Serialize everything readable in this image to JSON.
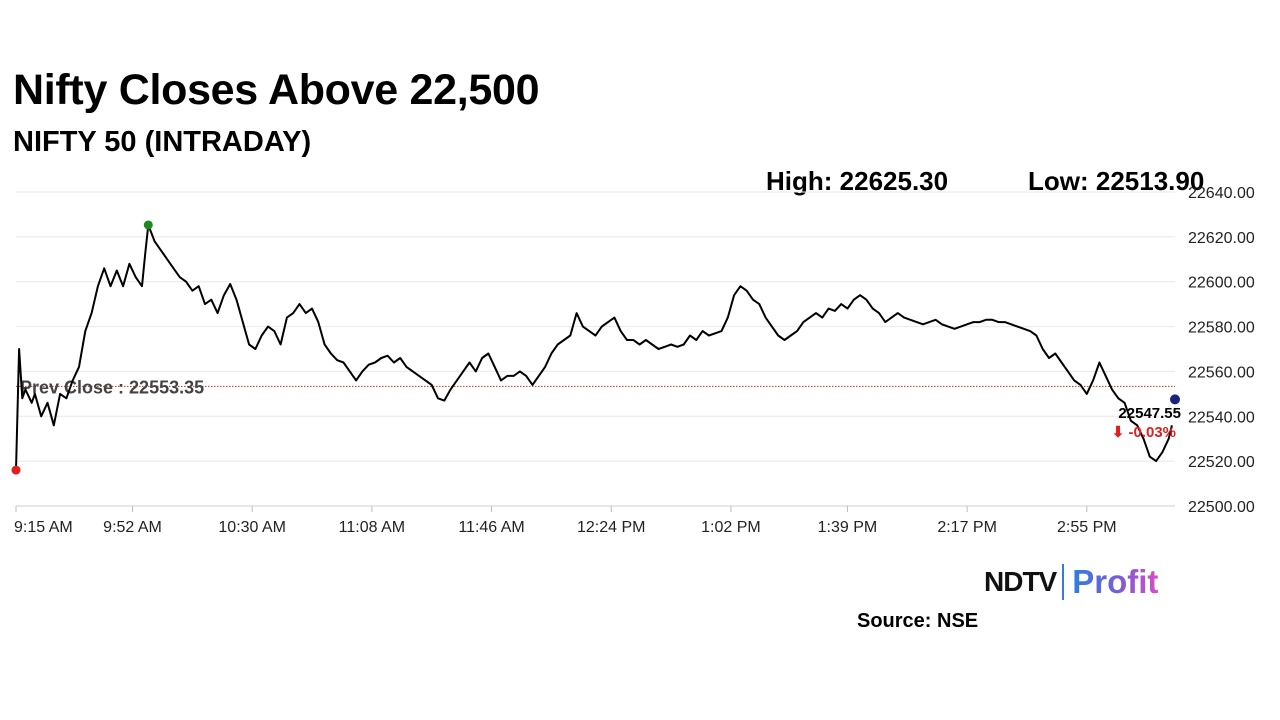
{
  "title": "Nifty Closes Above 22,500",
  "subtitle": "NIFTY 50 (INTRADAY)",
  "stats": {
    "high": "High: 22625.30",
    "low": "Low: 22513.90"
  },
  "brand": {
    "part1": "NDTV",
    "part2": "Profit"
  },
  "source": "Source: NSE",
  "chart_data": {
    "type": "line",
    "title": "Nifty Closes Above 22,500",
    "subtitle": "NIFTY 50 (INTRADAY)",
    "ylim": [
      22500,
      22640
    ],
    "y_ticks": [
      "22500.00",
      "22520.00",
      "22540.00",
      "22560.00",
      "22580.00",
      "22600.00",
      "22620.00",
      "22640.00"
    ],
    "x_ticks": [
      "9:15 AM",
      "9:52 AM",
      "10:30 AM",
      "11:08 AM",
      "11:46 AM",
      "12:24 PM",
      "1:02 PM",
      "1:39 PM",
      "2:17 PM",
      "2:55 PM"
    ],
    "x_tick_minutes": [
      555,
      592,
      630,
      668,
      706,
      744,
      782,
      819,
      857,
      895
    ],
    "grid": true,
    "prev_close": {
      "value": 22553.35,
      "label": "Prev Close : 22553.35",
      "color": "#c0392b"
    },
    "high": 22625.3,
    "low": 22513.9,
    "last": {
      "value": 22547.55,
      "label": "22547.55",
      "change": "⬇ -0.03%"
    },
    "series": [
      {
        "color": "#000000",
        "points": [
          [
            555,
            22516
          ],
          [
            556,
            22570
          ],
          [
            557,
            22548
          ],
          [
            558,
            22552
          ],
          [
            560,
            22546
          ],
          [
            561,
            22550
          ],
          [
            563,
            22540
          ],
          [
            565,
            22546
          ],
          [
            567,
            22536
          ],
          [
            569,
            22550
          ],
          [
            571,
            22548
          ],
          [
            573,
            22556
          ],
          [
            575,
            22562
          ],
          [
            577,
            22578
          ],
          [
            579,
            22586
          ],
          [
            581,
            22598
          ],
          [
            583,
            22606
          ],
          [
            585,
            22598
          ],
          [
            587,
            22605
          ],
          [
            589,
            22598
          ],
          [
            591,
            22608
          ],
          [
            593,
            22602
          ],
          [
            595,
            22598
          ],
          [
            596,
            22612
          ],
          [
            597,
            22625.3
          ],
          [
            599,
            22618
          ],
          [
            601,
            22614
          ],
          [
            603,
            22610
          ],
          [
            605,
            22606
          ],
          [
            607,
            22602
          ],
          [
            609,
            22600
          ],
          [
            611,
            22596
          ],
          [
            613,
            22598
          ],
          [
            615,
            22590
          ],
          [
            617,
            22592
          ],
          [
            619,
            22586
          ],
          [
            621,
            22594
          ],
          [
            623,
            22599
          ],
          [
            625,
            22592
          ],
          [
            627,
            22582
          ],
          [
            629,
            22572
          ],
          [
            631,
            22570
          ],
          [
            633,
            22576
          ],
          [
            635,
            22580
          ],
          [
            637,
            22578
          ],
          [
            639,
            22572
          ],
          [
            641,
            22584
          ],
          [
            643,
            22586
          ],
          [
            645,
            22590
          ],
          [
            647,
            22586
          ],
          [
            649,
            22588
          ],
          [
            651,
            22582
          ],
          [
            653,
            22572
          ],
          [
            655,
            22568
          ],
          [
            657,
            22565
          ],
          [
            659,
            22564
          ],
          [
            661,
            22560
          ],
          [
            663,
            22556
          ],
          [
            665,
            22560
          ],
          [
            667,
            22563
          ],
          [
            669,
            22564
          ],
          [
            671,
            22566
          ],
          [
            673,
            22567
          ],
          [
            675,
            22564
          ],
          [
            677,
            22566
          ],
          [
            679,
            22562
          ],
          [
            681,
            22560
          ],
          [
            683,
            22558
          ],
          [
            685,
            22556
          ],
          [
            687,
            22554
          ],
          [
            689,
            22548
          ],
          [
            691,
            22547
          ],
          [
            693,
            22552
          ],
          [
            695,
            22556
          ],
          [
            697,
            22560
          ],
          [
            699,
            22564
          ],
          [
            701,
            22560
          ],
          [
            703,
            22566
          ],
          [
            705,
            22568
          ],
          [
            707,
            22562
          ],
          [
            709,
            22556
          ],
          [
            711,
            22558
          ],
          [
            713,
            22558
          ],
          [
            715,
            22560
          ],
          [
            717,
            22558
          ],
          [
            719,
            22554
          ],
          [
            721,
            22558
          ],
          [
            723,
            22562
          ],
          [
            725,
            22568
          ],
          [
            727,
            22572
          ],
          [
            729,
            22574
          ],
          [
            731,
            22576
          ],
          [
            733,
            22586
          ],
          [
            735,
            22580
          ],
          [
            737,
            22578
          ],
          [
            739,
            22576
          ],
          [
            741,
            22580
          ],
          [
            743,
            22582
          ],
          [
            745,
            22584
          ],
          [
            747,
            22578
          ],
          [
            749,
            22574
          ],
          [
            751,
            22574
          ],
          [
            753,
            22572
          ],
          [
            755,
            22574
          ],
          [
            757,
            22572
          ],
          [
            759,
            22570
          ],
          [
            761,
            22571
          ],
          [
            763,
            22572
          ],
          [
            765,
            22571
          ],
          [
            767,
            22572
          ],
          [
            769,
            22576
          ],
          [
            771,
            22574
          ],
          [
            773,
            22578
          ],
          [
            775,
            22576
          ],
          [
            777,
            22577
          ],
          [
            779,
            22578
          ],
          [
            781,
            22584
          ],
          [
            783,
            22594
          ],
          [
            785,
            22598
          ],
          [
            787,
            22596
          ],
          [
            789,
            22592
          ],
          [
            791,
            22590
          ],
          [
            793,
            22584
          ],
          [
            795,
            22580
          ],
          [
            797,
            22576
          ],
          [
            799,
            22574
          ],
          [
            801,
            22576
          ],
          [
            803,
            22578
          ],
          [
            805,
            22582
          ],
          [
            807,
            22584
          ],
          [
            809,
            22586
          ],
          [
            811,
            22584
          ],
          [
            813,
            22588
          ],
          [
            815,
            22587
          ],
          [
            817,
            22590
          ],
          [
            819,
            22588
          ],
          [
            821,
            22592
          ],
          [
            823,
            22594
          ],
          [
            825,
            22592
          ],
          [
            827,
            22588
          ],
          [
            829,
            22586
          ],
          [
            831,
            22582
          ],
          [
            833,
            22584
          ],
          [
            835,
            22586
          ],
          [
            837,
            22584
          ],
          [
            839,
            22583
          ],
          [
            841,
            22582
          ],
          [
            843,
            22581
          ],
          [
            845,
            22582
          ],
          [
            847,
            22583
          ],
          [
            849,
            22581
          ],
          [
            851,
            22580
          ],
          [
            853,
            22579
          ],
          [
            855,
            22580
          ],
          [
            857,
            22581
          ],
          [
            859,
            22582
          ],
          [
            861,
            22582
          ],
          [
            863,
            22583
          ],
          [
            865,
            22583
          ],
          [
            867,
            22582
          ],
          [
            869,
            22582
          ],
          [
            871,
            22581
          ],
          [
            873,
            22580
          ],
          [
            875,
            22579
          ],
          [
            877,
            22578
          ],
          [
            879,
            22576
          ],
          [
            881,
            22570
          ],
          [
            883,
            22566
          ],
          [
            885,
            22568
          ],
          [
            887,
            22564
          ],
          [
            889,
            22560
          ],
          [
            891,
            22556
          ],
          [
            893,
            22554
          ],
          [
            895,
            22550
          ],
          [
            897,
            22556
          ],
          [
            899,
            22564
          ],
          [
            901,
            22558
          ],
          [
            903,
            22552
          ],
          [
            905,
            22548
          ],
          [
            907,
            22546
          ],
          [
            909,
            22538
          ],
          [
            911,
            22536
          ],
          [
            913,
            22530
          ],
          [
            915,
            22522
          ],
          [
            917,
            22520
          ],
          [
            919,
            22524
          ],
          [
            921,
            22530
          ],
          [
            922,
            22536
          ]
        ]
      }
    ]
  }
}
